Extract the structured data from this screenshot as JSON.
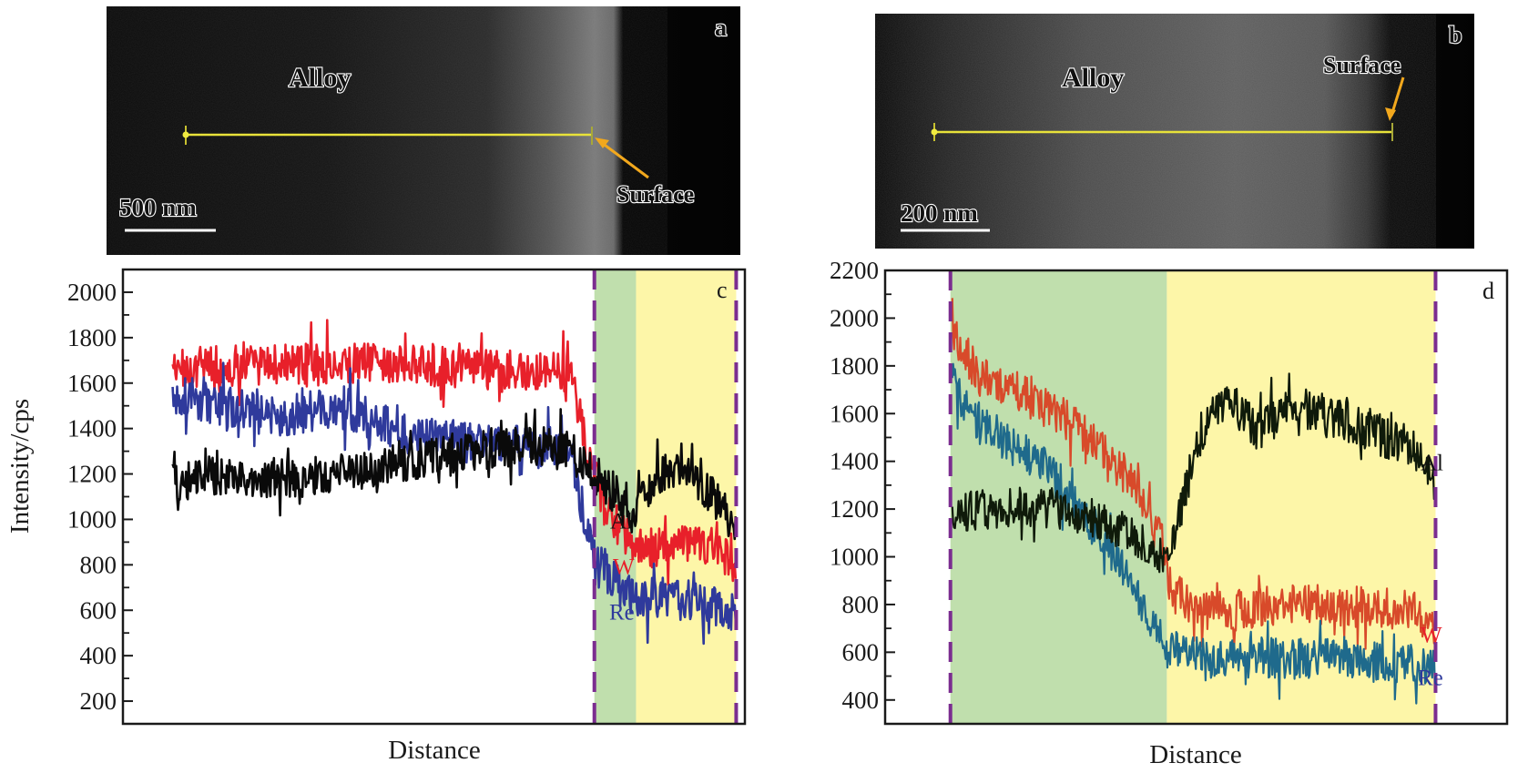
{
  "figure": {
    "panels": [
      {
        "id": "a",
        "letter": "a",
        "type": "micrograph",
        "region_label": "Alloy",
        "surface_label": "Surface",
        "scale_bar": "500 nm",
        "line_color": "#e8e23a",
        "arrow_color": "#f2a81d"
      },
      {
        "id": "b",
        "letter": "b",
        "type": "micrograph",
        "region_label": "Alloy",
        "surface_label": "Surface",
        "scale_bar": "200 nm",
        "line_color": "#e8e23a",
        "arrow_color": "#f2a81d"
      }
    ]
  },
  "chart_data": [
    {
      "id": "c",
      "letter": "c",
      "type": "line",
      "title": "",
      "xlabel": "Distance",
      "ylabel": "Intensity/cps",
      "x_range": [
        0,
        100
      ],
      "ylim": [
        100,
        2100
      ],
      "y_ticks": [
        200,
        400,
        600,
        800,
        1000,
        1200,
        1400,
        1600,
        1800,
        2000
      ],
      "grid": false,
      "legend": "inline-right",
      "boundaries": [
        {
          "x": 75.8,
          "color": "#7b2d90",
          "style": "dashed"
        },
        {
          "x": 98.6,
          "color": "#7b2d90",
          "style": "dashed"
        }
      ],
      "shaded_regions": [
        {
          "from": 75.8,
          "to": 82.5,
          "color": "#c0dfad"
        },
        {
          "from": 82.5,
          "to": 98.6,
          "color": "#fdf6a8"
        }
      ],
      "series": [
        {
          "name": "W",
          "label": "W",
          "color": "#e8202a",
          "label_color": "#e8202a",
          "x": [
            8,
            15,
            25,
            35,
            45,
            55,
            65,
            72,
            75,
            78,
            82,
            86,
            90,
            95,
            98.5
          ],
          "values": [
            1660,
            1680,
            1680,
            1690,
            1680,
            1660,
            1660,
            1640,
            1250,
            1020,
            880,
            880,
            900,
            880,
            800
          ]
        },
        {
          "name": "Re",
          "label": "Re",
          "color": "#2f3a9c",
          "label_color": "#2f3a9c",
          "x": [
            8,
            15,
            25,
            35,
            45,
            55,
            65,
            72,
            75,
            78,
            82,
            86,
            90,
            95,
            98.5
          ],
          "values": [
            1560,
            1500,
            1450,
            1500,
            1380,
            1340,
            1320,
            1300,
            900,
            750,
            650,
            660,
            640,
            620,
            600
          ]
        },
        {
          "name": "Al",
          "label": "Al",
          "color": "#0a0a0a",
          "label_color": "#111111",
          "x": [
            8,
            15,
            25,
            35,
            45,
            55,
            65,
            72,
            75,
            78,
            82,
            86,
            90,
            95,
            98.5
          ],
          "values": [
            1150,
            1200,
            1180,
            1200,
            1250,
            1300,
            1330,
            1300,
            1220,
            1150,
            1020,
            1200,
            1250,
            1100,
            940
          ]
        }
      ]
    },
    {
      "id": "d",
      "letter": "d",
      "type": "line",
      "title": "",
      "xlabel": "Distance",
      "ylabel": "",
      "x_range": [
        0,
        100
      ],
      "ylim": [
        300,
        2200
      ],
      "y_ticks": [
        400,
        600,
        800,
        1000,
        1200,
        1400,
        1600,
        1800,
        2000,
        2200
      ],
      "grid": false,
      "legend": "inline-right",
      "boundaries": [
        {
          "x": 10.5,
          "color": "#7b2d90",
          "style": "dashed"
        },
        {
          "x": 88.5,
          "color": "#7b2d90",
          "style": "dashed"
        }
      ],
      "shaded_regions": [
        {
          "from": 10.5,
          "to": 45.3,
          "color": "#c0dfad"
        },
        {
          "from": 45.3,
          "to": 88.5,
          "color": "#fdf6a8"
        }
      ],
      "series": [
        {
          "name": "W",
          "label": "W",
          "color": "#d84a2a",
          "label_color": "#e8202a",
          "x": [
            10.8,
            15,
            20,
            25,
            30,
            35,
            40,
            44,
            46,
            50,
            55,
            60,
            65,
            70,
            75,
            80,
            85,
            88.4
          ],
          "values": [
            1950,
            1760,
            1700,
            1640,
            1560,
            1450,
            1300,
            1120,
            860,
            780,
            770,
            790,
            800,
            800,
            790,
            790,
            770,
            700
          ]
        },
        {
          "name": "Re",
          "label": "Re",
          "color": "#1f6a8c",
          "label_color": "#2f3a9c",
          "x": [
            10.8,
            15,
            20,
            25,
            30,
            35,
            40,
            44,
            46,
            50,
            55,
            60,
            65,
            70,
            75,
            80,
            85,
            88.4
          ],
          "values": [
            1720,
            1560,
            1480,
            1400,
            1240,
            1080,
            880,
            680,
            620,
            580,
            570,
            580,
            570,
            580,
            560,
            560,
            550,
            520
          ]
        },
        {
          "name": "Al",
          "label": "Al",
          "color": "#0f1a0a",
          "label_color": "#111111",
          "x": [
            10.8,
            15,
            20,
            25,
            30,
            35,
            40,
            44,
            46,
            48,
            50,
            53,
            56,
            60,
            65,
            70,
            75,
            80,
            85,
            88.4
          ],
          "values": [
            1180,
            1200,
            1200,
            1210,
            1190,
            1150,
            1080,
            1000,
            1010,
            1250,
            1450,
            1600,
            1650,
            1520,
            1640,
            1600,
            1560,
            1500,
            1460,
            1320
          ]
        }
      ]
    }
  ]
}
